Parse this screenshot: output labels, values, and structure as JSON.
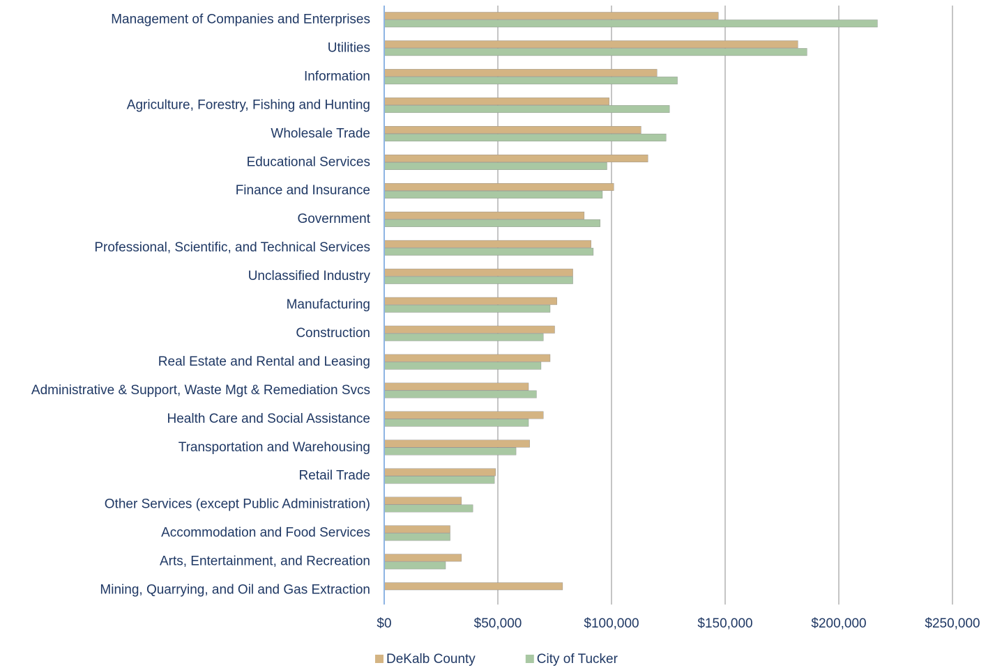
{
  "chart_data": {
    "type": "bar",
    "orientation": "horizontal",
    "categories": [
      "Management of Companies and Enterprises",
      "Utilities",
      "Information",
      "Agriculture, Forestry, Fishing and Hunting",
      "Wholesale Trade",
      "Educational Services",
      "Finance and Insurance",
      "Government",
      "Professional, Scientific, and Technical Services",
      "Unclassified Industry",
      "Manufacturing",
      "Construction",
      "Real Estate and Rental and Leasing",
      "Administrative & Support, Waste Mgt & Remediation Svcs",
      "Health Care and Social Assistance",
      "Transportation and Warehousing",
      "Retail Trade",
      "Other Services (except Public Administration)",
      "Accommodation and Food Services",
      "Arts, Entertainment, and Recreation",
      "Mining, Quarrying, and Oil and Gas Extraction"
    ],
    "series": [
      {
        "name": "DeKalb County",
        "color": "#d4b483",
        "values": [
          147000,
          182000,
          120000,
          99000,
          113000,
          116000,
          101000,
          88000,
          91000,
          83000,
          76000,
          75000,
          73000,
          63500,
          70000,
          64000,
          49000,
          34000,
          29000,
          34000,
          78500
        ]
      },
      {
        "name": "City of Tucker",
        "color": "#a9c8a3",
        "values": [
          217000,
          186000,
          129000,
          125500,
          124000,
          98000,
          96000,
          95000,
          92000,
          83000,
          73000,
          70000,
          69000,
          67000,
          63500,
          58000,
          48500,
          39000,
          29000,
          27000,
          null
        ]
      }
    ],
    "xlim": [
      0,
      250000
    ],
    "xticks": [
      {
        "value": 0,
        "label": "$0"
      },
      {
        "value": 50000,
        "label": "$50,000"
      },
      {
        "value": 100000,
        "label": "$100,000"
      },
      {
        "value": 150000,
        "label": "$150,000"
      },
      {
        "value": 200000,
        "label": "$200,000"
      },
      {
        "value": 250000,
        "label": "$250,000"
      }
    ],
    "grid": true,
    "legend": "bottom"
  }
}
